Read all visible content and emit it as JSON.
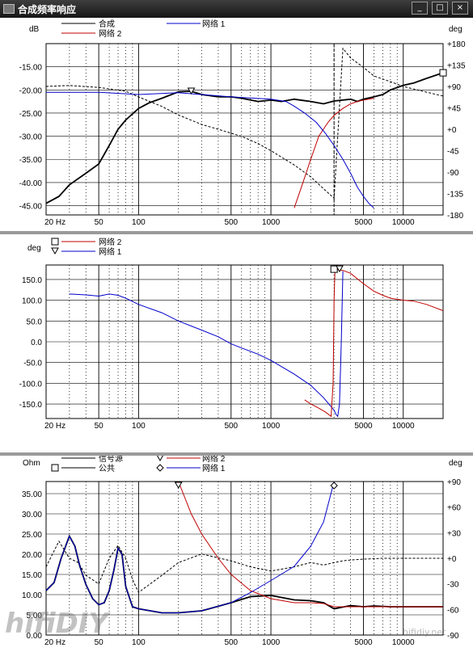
{
  "window": {
    "title": "合成频率响应",
    "btn_min": "_",
    "btn_max": "□",
    "btn_close": "×"
  },
  "watermark": {
    "left": "hifiDIY",
    "right": "hifidiy.net"
  },
  "chart_data": [
    {
      "type": "line",
      "xscale": "log",
      "xlim": [
        20,
        20000
      ],
      "x_ticks": [
        "20 Hz",
        "50",
        "100",
        "500",
        "1000",
        "5000",
        "10000"
      ],
      "x_tick_values": [
        20,
        50,
        100,
        500,
        1000,
        5000,
        10000
      ],
      "ylabel": "dB",
      "ylim": [
        -47,
        -10
      ],
      "y_ticks": [
        "-15.00",
        "-20.00",
        "-25.00",
        "-30.00",
        "-35.00",
        "-40.00",
        "-45.00"
      ],
      "y_tick_values": [
        -15,
        -20,
        -25,
        -30,
        -35,
        -40,
        -45
      ],
      "y2label": "deg",
      "y2lim": [
        -180,
        180
      ],
      "y2_ticks": [
        "+180",
        "+135",
        "+90",
        "+45",
        "+0",
        "-45",
        "-90",
        "-135",
        "-180"
      ],
      "y2_tick_values": [
        180,
        135,
        90,
        45,
        0,
        -45,
        -90,
        -135,
        -180
      ],
      "grid": true,
      "legend": [
        {
          "label": "合成",
          "color": "#000000"
        },
        {
          "label": "网络 2",
          "color": "#c00000"
        },
        {
          "label": "网络 1",
          "color": "#0000cc"
        }
      ],
      "series": [
        {
          "name": "合成",
          "axis": "left",
          "color": "#000000",
          "width": 1.8,
          "x": [
            20,
            25,
            30,
            40,
            50,
            60,
            70,
            80,
            100,
            120,
            150,
            200,
            250,
            300,
            400,
            500,
            600,
            800,
            1000,
            1200,
            1500,
            2000,
            2500,
            3000,
            4000,
            4500,
            5000,
            6000,
            7000,
            8000,
            10000,
            12000,
            15000,
            20000
          ],
          "y": [
            -44.5,
            -43,
            -40.5,
            -38,
            -36,
            -32,
            -28.5,
            -26.5,
            -24,
            -22.8,
            -21.8,
            -20.4,
            -20.3,
            -21,
            -21.5,
            -21.5,
            -21.8,
            -22.5,
            -22.2,
            -22.5,
            -22,
            -22.5,
            -23,
            -22.4,
            -22,
            -22.5,
            -22,
            -21.5,
            -21,
            -20,
            -19,
            -18.5,
            -17.5,
            -16.3
          ]
        },
        {
          "name": "合成 相位",
          "axis": "right",
          "color": "#000000",
          "dashed": true,
          "width": 1,
          "x": [
            20,
            30,
            50,
            80,
            100,
            150,
            200,
            300,
            400,
            600,
            800,
            1000,
            1500,
            2000,
            2500,
            3000,
            3500,
            4000,
            5000,
            6000,
            8000,
            10000,
            15000,
            20000
          ],
          "y": [
            90,
            92,
            88,
            80,
            68,
            48,
            30,
            10,
            0,
            -15,
            -30,
            -45,
            -75,
            -100,
            -125,
            -145,
            170,
            150,
            130,
            112,
            100,
            90,
            78,
            70
          ]
        },
        {
          "name": "网络 2",
          "axis": "left",
          "color": "#c00000",
          "width": 1,
          "x": [
            1500,
            1700,
            2000,
            2300,
            2700,
            3000,
            3500,
            4000,
            4500,
            5000,
            5500,
            6000
          ],
          "y": [
            -45.5,
            -41,
            -35,
            -30,
            -27,
            -25.5,
            -24,
            -23,
            -22.5,
            -22.2,
            -22,
            -21.8
          ]
        },
        {
          "name": "网络 1",
          "axis": "left",
          "color": "#0000cc",
          "width": 1,
          "x": [
            20,
            50,
            100,
            200,
            500,
            1000,
            1300,
            1500,
            1800,
            2200,
            2600,
            3000,
            3500,
            4000,
            4500,
            5000,
            5500,
            6000
          ],
          "y": [
            -20.5,
            -20.5,
            -21,
            -20.6,
            -21.5,
            -22,
            -22.5,
            -23.5,
            -25,
            -27,
            -29.5,
            -32,
            -35,
            -38,
            -41,
            -43,
            -44.5,
            -45.5
          ]
        }
      ],
      "markers": [
        {
          "symbol": "triangle-down",
          "x": 250,
          "y": -20.3
        },
        {
          "symbol": "square",
          "x": 20000,
          "y": -16.3
        }
      ],
      "cursor_x": 3000
    },
    {
      "type": "line",
      "xscale": "log",
      "xlim": [
        20,
        20000
      ],
      "x_ticks": [
        "20 Hz",
        "50",
        "100",
        "500",
        "1000",
        "5000",
        "10000"
      ],
      "x_tick_values": [
        20,
        50,
        100,
        500,
        1000,
        5000,
        10000
      ],
      "ylabel": "deg",
      "ylim": [
        -185,
        185
      ],
      "y_ticks": [
        "150.0",
        "100.0",
        "50.0",
        "0.0",
        "-50.0",
        "-100.0",
        "-150.0"
      ],
      "y_tick_values": [
        150,
        100,
        50,
        0,
        -50,
        -100,
        -150
      ],
      "grid": true,
      "legend": [
        {
          "label": "网络 2",
          "color": "#c00000",
          "marker": "square"
        },
        {
          "label": "网络 1",
          "color": "#0000cc",
          "marker": "triangle-down"
        }
      ],
      "series": [
        {
          "name": "网络 1",
          "color": "#0000cc",
          "width": 1,
          "x": [
            30,
            40,
            50,
            60,
            70,
            80,
            100,
            150,
            200,
            300,
            400,
            500,
            600,
            800,
            1000,
            1500,
            2000,
            2500,
            3000,
            3100,
            3200,
            3300,
            3400,
            3500
          ],
          "y": [
            115,
            113,
            110,
            115,
            112,
            105,
            90,
            70,
            50,
            28,
            12,
            -5,
            -15,
            -30,
            -45,
            -78,
            -105,
            -135,
            -165,
            -175,
            -180,
            -150,
            0,
            170
          ]
        },
        {
          "name": "网络 2",
          "color": "#c00000",
          "width": 1,
          "x": [
            1800,
            2000,
            2300,
            2600,
            2850,
            2950,
            3000,
            3050,
            3500,
            4000,
            5000,
            6000,
            7000,
            8000,
            10000,
            12000,
            15000,
            20000
          ],
          "y": [
            -140,
            -150,
            -160,
            -170,
            -180,
            -100,
            100,
            175,
            172,
            165,
            140,
            122,
            112,
            105,
            100,
            98,
            90,
            75
          ]
        }
      ],
      "markers": [
        {
          "symbol": "square",
          "x": 3000,
          "y": 175
        },
        {
          "symbol": "triangle-down",
          "x": 3300,
          "y": 175
        }
      ]
    },
    {
      "type": "line",
      "xscale": "log",
      "xlim": [
        20,
        20000
      ],
      "x_ticks": [
        "20 Hz",
        "50",
        "100",
        "500",
        "1000",
        "5000",
        "10000"
      ],
      "x_tick_values": [
        20,
        50,
        100,
        500,
        1000,
        5000,
        10000
      ],
      "ylabel": "Ohm",
      "ylim": [
        0,
        38
      ],
      "y_ticks": [
        "35.00",
        "30.00",
        "25.00",
        "20.00",
        "15.00",
        "10.00",
        "5.00",
        "0.00"
      ],
      "y_tick_values": [
        35,
        30,
        25,
        20,
        15,
        10,
        5,
        0
      ],
      "y2label": "deg",
      "y2lim": [
        -90,
        90
      ],
      "y2_ticks": [
        "+90",
        "+60",
        "+30",
        "+0",
        "-30",
        "-60",
        "-90"
      ],
      "y2_tick_values": [
        90,
        60,
        30,
        0,
        -30,
        -60,
        -90
      ],
      "grid": true,
      "legend": [
        {
          "label": "信号源",
          "color": "#000000"
        },
        {
          "label": "公共",
          "color": "#000000",
          "marker": "square"
        },
        {
          "label": "网络 2",
          "color": "#c00000",
          "marker": "triangle-down"
        },
        {
          "label": "网络 1",
          "color": "#0000cc",
          "marker": "diamond"
        }
      ],
      "series": [
        {
          "name": "信号源",
          "axis": "left",
          "color": "#000000",
          "width": 1.8,
          "x": [
            20,
            23,
            26,
            30,
            33,
            36,
            40,
            45,
            50,
            55,
            60,
            65,
            70,
            75,
            80,
            90,
            100,
            150,
            200,
            300,
            500,
            700,
            1000,
            1500,
            2000,
            2500,
            3000,
            4000,
            5000,
            6000,
            8000,
            10000,
            15000,
            20000
          ],
          "y": [
            11,
            13,
            19,
            24.5,
            22,
            17,
            12.5,
            9,
            7.5,
            8,
            11,
            16,
            21.5,
            20,
            12,
            7,
            6.5,
            5.5,
            5.5,
            6,
            8,
            9.5,
            9.8,
            8.7,
            8.5,
            8,
            6.5,
            7.3,
            7,
            7.2,
            7,
            7,
            7,
            7
          ]
        },
        {
          "name": "公共",
          "axis": "right",
          "color": "#000000",
          "dashed": true,
          "width": 1,
          "x": [
            20,
            25,
            30,
            35,
            40,
            50,
            60,
            70,
            80,
            90,
            100,
            150,
            200,
            300,
            500,
            700,
            1000,
            1500,
            2000,
            2500,
            3000,
            3500,
            4000,
            5000,
            7000,
            10000,
            20000
          ],
          "y": [
            -10,
            20,
            0,
            -5,
            -20,
            -30,
            0,
            15,
            0,
            -25,
            -40,
            -20,
            -5,
            5,
            -3,
            -10,
            -15,
            -10,
            -5,
            -8,
            -5,
            -3,
            -2,
            -1,
            0,
            0,
            0
          ]
        },
        {
          "name": "网络 2",
          "axis": "left",
          "color": "#c00000",
          "width": 1,
          "x": [
            200,
            250,
            300,
            400,
            500,
            700,
            1000,
            1500,
            2000,
            2500,
            3000,
            4000,
            5000,
            7000,
            10000,
            15000,
            20000
          ],
          "y": [
            38,
            30,
            25,
            19,
            15,
            11,
            9,
            8,
            8,
            7.8,
            7,
            7,
            7,
            7,
            7,
            7,
            7
          ]
        },
        {
          "name": "网络 1",
          "axis": "left",
          "color": "#0000cc",
          "width": 1,
          "x": [
            20,
            23,
            26,
            30,
            33,
            36,
            40,
            45,
            50,
            55,
            60,
            65,
            70,
            75,
            80,
            90,
            100,
            150,
            200,
            300,
            500,
            700,
            1000,
            1500,
            2000,
            2500,
            3000
          ],
          "y": [
            11,
            13,
            19,
            24.5,
            22,
            17,
            12.5,
            9,
            7.5,
            8,
            11,
            16,
            21.5,
            20,
            12,
            7,
            6.5,
            5.5,
            5.5,
            6,
            8,
            10.5,
            13.5,
            17,
            22,
            28,
            38
          ]
        }
      ],
      "markers": [
        {
          "symbol": "triangle-down",
          "x": 200,
          "y": 37
        },
        {
          "symbol": "diamond",
          "x": 3000,
          "y": 37
        }
      ]
    }
  ]
}
